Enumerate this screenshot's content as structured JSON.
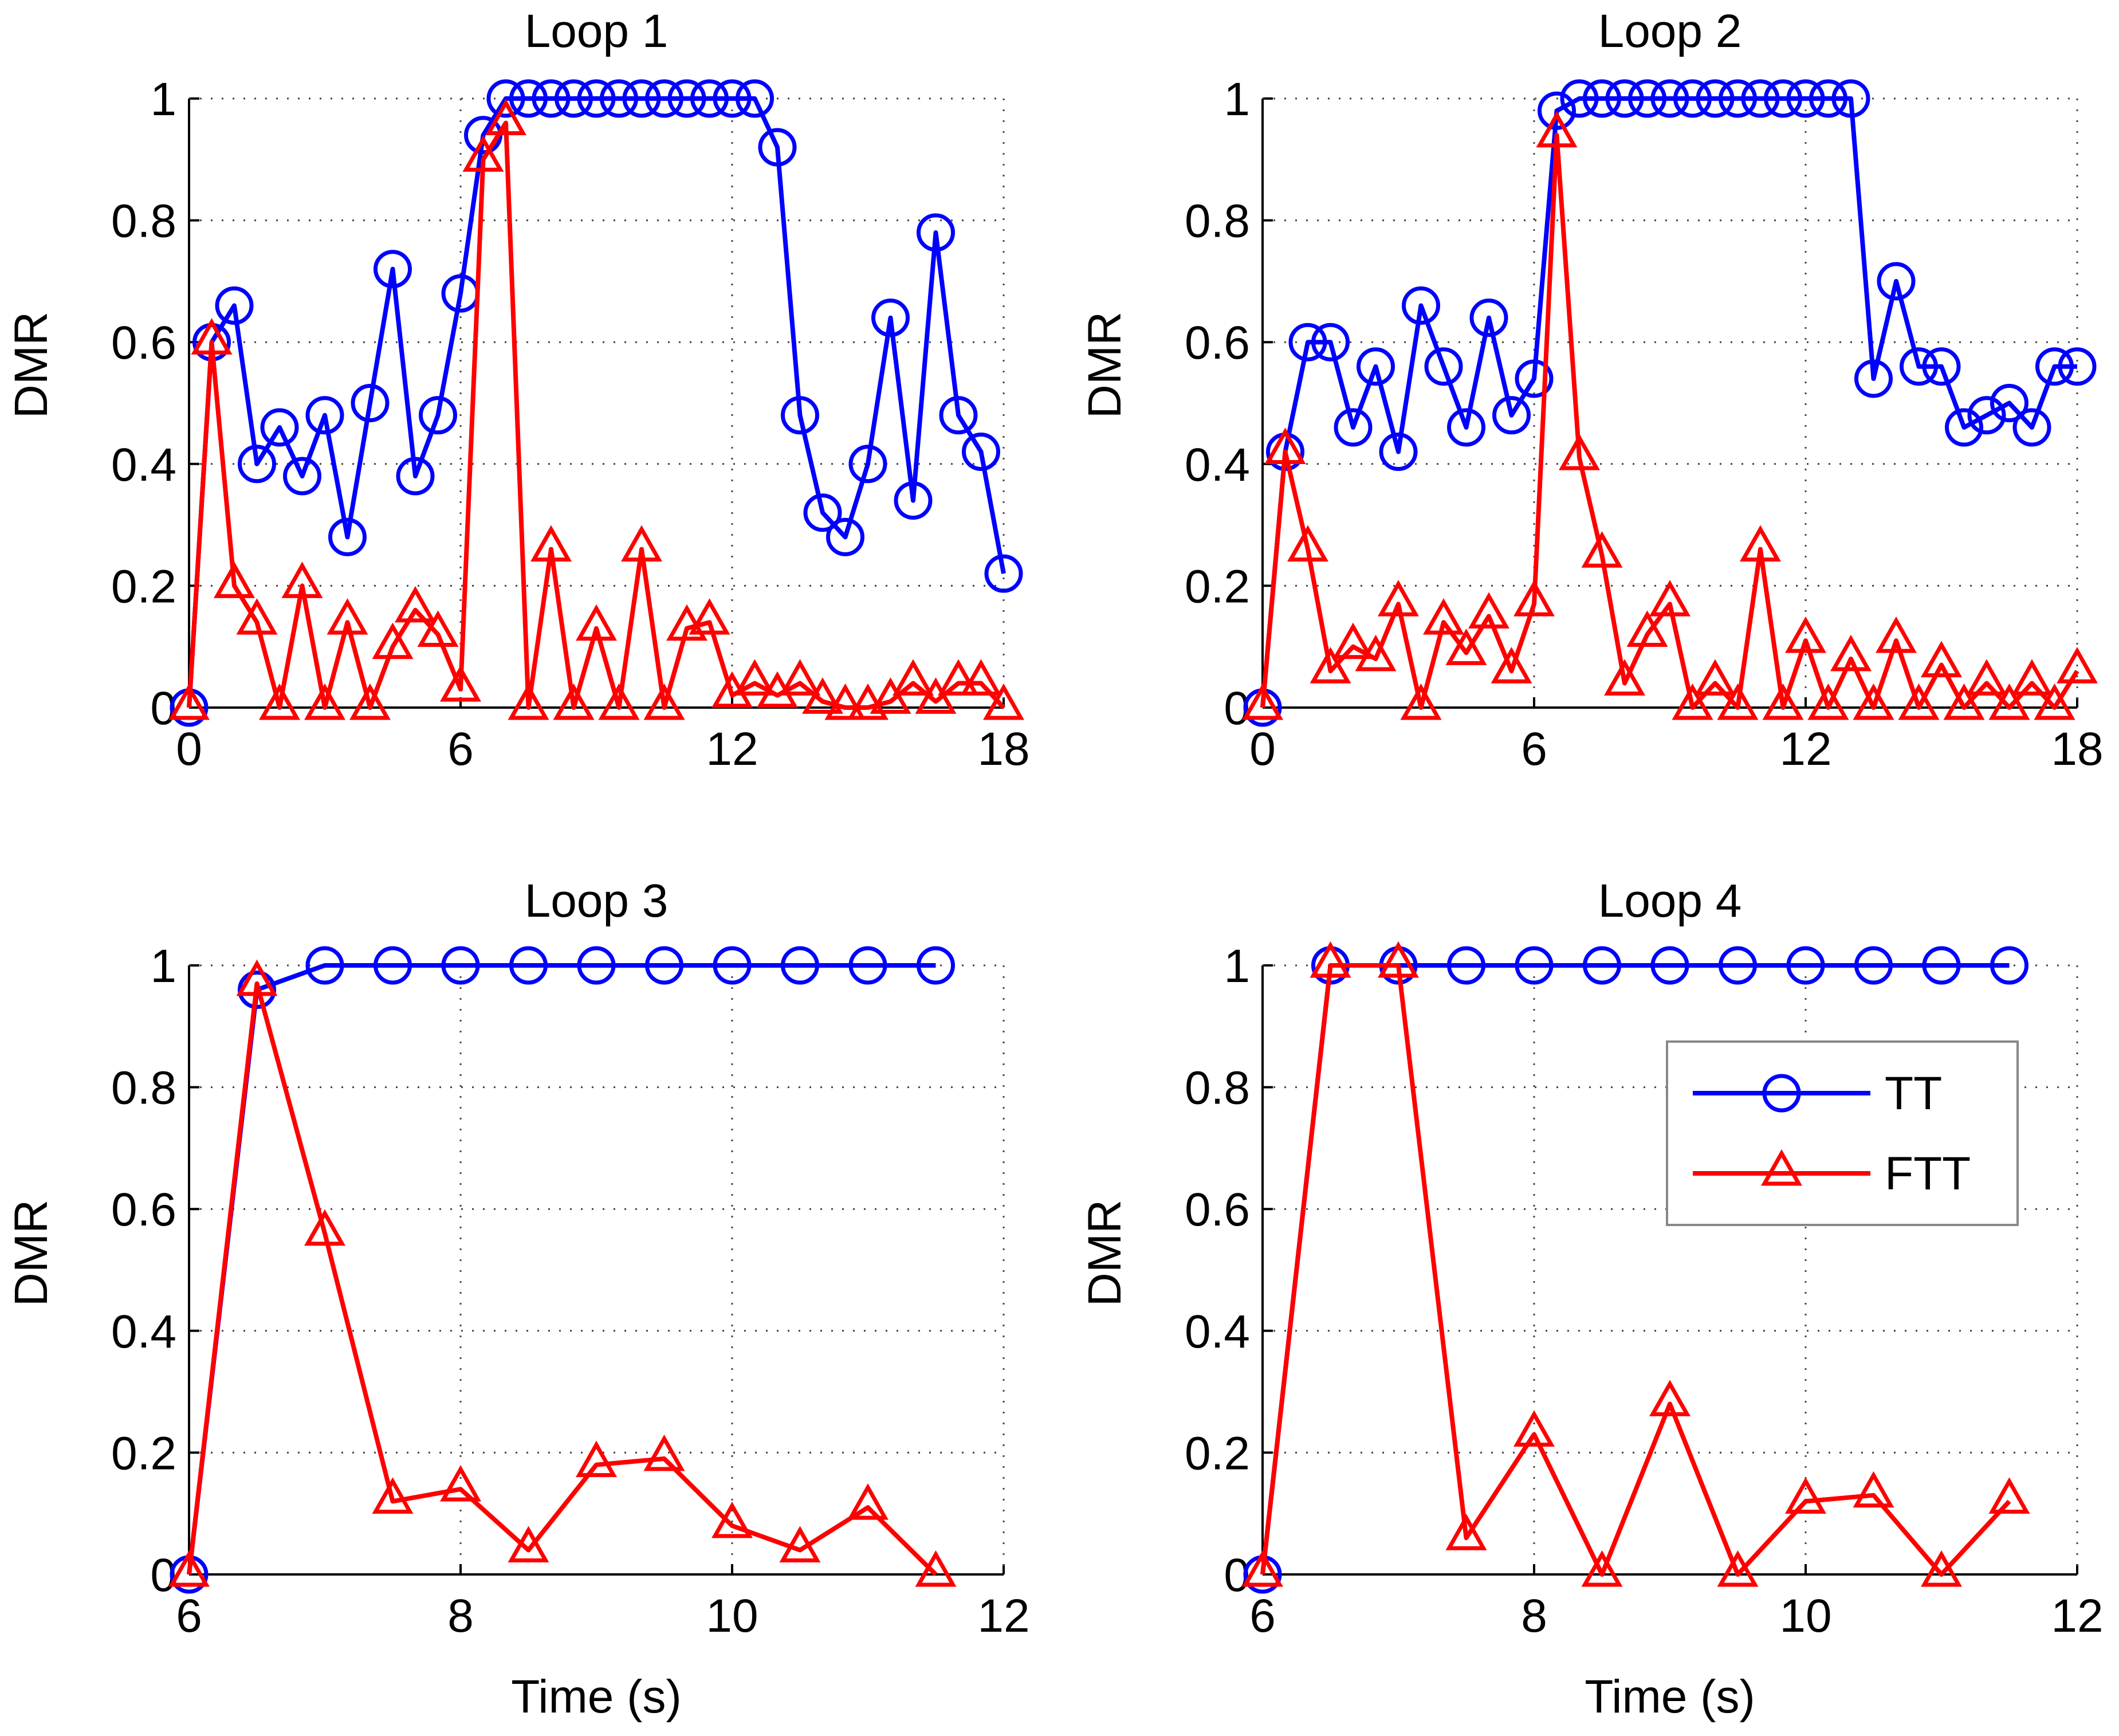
{
  "colors": {
    "tt": "#0000ff",
    "ftt": "#ff0000",
    "grid": "#444444",
    "axis": "#000000"
  },
  "legend": {
    "items": [
      {
        "label": "TT",
        "series": "tt"
      },
      {
        "label": "FTT",
        "series": "ftt"
      }
    ]
  },
  "chart_data": [
    {
      "type": "line",
      "title": "Loop 1",
      "xlabel": "",
      "ylabel": "DMR",
      "xlim": [
        0,
        18
      ],
      "ylim": [
        0,
        1
      ],
      "xticks": [
        "0",
        "6",
        "12",
        "18"
      ],
      "yticks": [
        "0",
        "0.2",
        "0.4",
        "0.6",
        "0.8",
        "1"
      ],
      "grid": true,
      "series": [
        {
          "name": "TT",
          "key": "tt",
          "marker": "circle",
          "x": [
            0,
            0.5,
            1,
            1.5,
            2,
            2.5,
            3,
            3.5,
            4,
            4.5,
            5,
            5.5,
            6,
            6.5,
            7,
            7.5,
            8,
            8.5,
            9,
            9.5,
            10,
            10.5,
            11,
            11.5,
            12,
            12.5,
            13,
            13.5,
            14,
            14.5,
            15,
            15.5,
            16,
            16.5,
            17,
            17.5,
            18
          ],
          "y": [
            0,
            0.6,
            0.66,
            0.4,
            0.46,
            0.38,
            0.48,
            0.28,
            0.5,
            0.72,
            0.38,
            0.48,
            0.68,
            0.94,
            1,
            1,
            1,
            1,
            1,
            1,
            1,
            1,
            1,
            1,
            1,
            1,
            0.92,
            0.48,
            0.32,
            0.28,
            0.4,
            0.64,
            0.34,
            0.78,
            0.48,
            0.42,
            0.22
          ]
        },
        {
          "name": "FTT",
          "key": "ftt",
          "marker": "triangle",
          "x": [
            0,
            0.5,
            1,
            1.5,
            2,
            2.5,
            3,
            3.5,
            4,
            4.5,
            5,
            5.5,
            6,
            6.5,
            7,
            7.5,
            8,
            8.5,
            9,
            9.5,
            10,
            10.5,
            11,
            11.5,
            12,
            12.5,
            13,
            13.5,
            14,
            14.5,
            15,
            15.5,
            16,
            16.5,
            17,
            17.5,
            18
          ],
          "y": [
            0,
            0.6,
            0.2,
            0.14,
            0,
            0.2,
            0,
            0.14,
            0,
            0.1,
            0.16,
            0.12,
            0.03,
            0.9,
            0.96,
            0,
            0.26,
            0,
            0.13,
            0,
            0.26,
            0,
            0.13,
            0.14,
            0.02,
            0.04,
            0.02,
            0.04,
            0.01,
            0,
            0,
            0.01,
            0.04,
            0.01,
            0.04,
            0.04,
            0
          ]
        }
      ]
    },
    {
      "type": "line",
      "title": "Loop 2",
      "xlabel": "",
      "ylabel": "DMR",
      "xlim": [
        0,
        18
      ],
      "ylim": [
        0,
        1
      ],
      "xticks": [
        "0",
        "6",
        "12",
        "18"
      ],
      "yticks": [
        "0",
        "0.2",
        "0.4",
        "0.6",
        "0.8",
        "1"
      ],
      "grid": true,
      "series": [
        {
          "name": "TT",
          "key": "tt",
          "marker": "circle",
          "x": [
            0,
            0.5,
            1,
            1.5,
            2,
            2.5,
            3,
            3.5,
            4,
            4.5,
            5,
            5.5,
            6,
            6.5,
            7,
            7.5,
            8,
            8.5,
            9,
            9.5,
            10,
            10.5,
            11,
            11.5,
            12,
            12.5,
            13,
            13.5,
            14,
            14.5,
            15,
            15.5,
            16,
            16.5,
            17,
            17.5,
            18
          ],
          "y": [
            0,
            0.42,
            0.6,
            0.6,
            0.46,
            0.56,
            0.42,
            0.66,
            0.56,
            0.46,
            0.64,
            0.48,
            0.54,
            0.98,
            1,
            1,
            1,
            1,
            1,
            1,
            1,
            1,
            1,
            1,
            1,
            1,
            1,
            0.54,
            0.7,
            0.56,
            0.56,
            0.46,
            0.48,
            0.5,
            0.46,
            0.56,
            0.56
          ]
        },
        {
          "name": "FTT",
          "key": "ftt",
          "marker": "triangle",
          "x": [
            0,
            0.5,
            1,
            1.5,
            2,
            2.5,
            3,
            3.5,
            4,
            4.5,
            5,
            5.5,
            6,
            6.5,
            7,
            7.5,
            8,
            8.5,
            9,
            9.5,
            10,
            10.5,
            11,
            11.5,
            12,
            12.5,
            13,
            13.5,
            14,
            14.5,
            15,
            15.5,
            16,
            16.5,
            17,
            17.5,
            18
          ],
          "y": [
            0,
            0.42,
            0.26,
            0.06,
            0.1,
            0.08,
            0.17,
            0,
            0.14,
            0.09,
            0.15,
            0.06,
            0.17,
            0.94,
            0.41,
            0.25,
            0.04,
            0.12,
            0.17,
            0,
            0.04,
            0,
            0.26,
            0,
            0.11,
            0,
            0.08,
            0,
            0.11,
            0,
            0.07,
            0,
            0.04,
            0,
            0.04,
            0,
            0.06
          ]
        }
      ]
    },
    {
      "type": "line",
      "title": "Loop 3",
      "xlabel": "Time (s)",
      "ylabel": "DMR",
      "xlim": [
        6,
        12
      ],
      "ylim": [
        0,
        1
      ],
      "xticks": [
        "6",
        "8",
        "10",
        "12"
      ],
      "yticks": [
        "0",
        "0.2",
        "0.4",
        "0.6",
        "0.8",
        "1"
      ],
      "grid": true,
      "series": [
        {
          "name": "TT",
          "key": "tt",
          "marker": "circle",
          "x": [
            6,
            6.5,
            7,
            7.5,
            8,
            8.5,
            9,
            9.5,
            10,
            10.5,
            11,
            11.5
          ],
          "y": [
            0,
            0.96,
            1,
            1,
            1,
            1,
            1,
            1,
            1,
            1,
            1,
            1
          ]
        },
        {
          "name": "FTT",
          "key": "ftt",
          "marker": "triangle",
          "x": [
            6,
            6.5,
            7,
            7.5,
            8,
            8.5,
            9,
            9.5,
            10,
            10.5,
            11,
            11.5
          ],
          "y": [
            0,
            0.97,
            0.56,
            0.12,
            0.14,
            0.04,
            0.18,
            0.19,
            0.08,
            0.04,
            0.11,
            0
          ]
        }
      ]
    },
    {
      "type": "line",
      "title": "Loop 4",
      "xlabel": "Time (s)",
      "ylabel": "DMR",
      "xlim": [
        6,
        12
      ],
      "ylim": [
        0,
        1
      ],
      "xticks": [
        "6",
        "8",
        "10",
        "12"
      ],
      "yticks": [
        "0",
        "0.2",
        "0.4",
        "0.6",
        "0.8",
        "1"
      ],
      "grid": true,
      "legend": true,
      "legend_position": "top-right",
      "series": [
        {
          "name": "TT",
          "key": "tt",
          "marker": "circle",
          "x": [
            6,
            6.5,
            7,
            7.5,
            8,
            8.5,
            9,
            9.5,
            10,
            10.5,
            11,
            11.5
          ],
          "y": [
            0,
            1,
            1,
            1,
            1,
            1,
            1,
            1,
            1,
            1,
            1,
            1
          ]
        },
        {
          "name": "FTT",
          "key": "ftt",
          "marker": "triangle",
          "x": [
            6,
            6.5,
            7,
            7.5,
            8,
            8.5,
            9,
            9.5,
            10,
            10.5,
            11,
            11.5
          ],
          "y": [
            0,
            1,
            1,
            0.06,
            0.23,
            0,
            0.28,
            0,
            0.12,
            0.13,
            0,
            0.12
          ]
        }
      ]
    }
  ]
}
